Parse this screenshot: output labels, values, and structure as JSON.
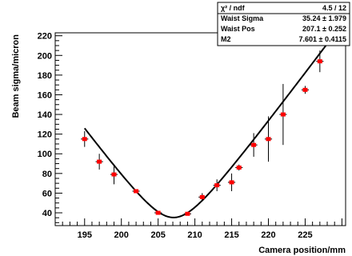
{
  "chart_data": {
    "type": "scatter",
    "title": "",
    "xlabel": "Camera position/mm",
    "ylabel": "Beam sigma/micron",
    "xlim": [
      191,
      230.5
    ],
    "ylim": [
      27,
      223
    ],
    "xticks": [
      195,
      200,
      205,
      210,
      215,
      220,
      225
    ],
    "xtick_labels": [
      "195",
      "200",
      "205",
      "210",
      "215",
      "220",
      "225"
    ],
    "yticks": [
      40,
      60,
      80,
      100,
      120,
      140,
      160,
      180,
      200,
      220
    ],
    "ytick_labels": [
      "40",
      "60",
      "80",
      "100",
      "120",
      "140",
      "160",
      "180",
      "200",
      "220"
    ],
    "grid": false,
    "marker_color": "#ff0000",
    "line_color": "#000000",
    "series": [
      {
        "x": [
          195,
          197,
          199,
          202,
          205,
          209,
          211,
          213,
          215,
          216,
          218,
          220,
          222,
          225,
          227
        ],
        "y": [
          115,
          92,
          79,
          62,
          40,
          39,
          56,
          68,
          71,
          86,
          109,
          115,
          140,
          165,
          194
        ],
        "xerr": [
          0.5,
          0.5,
          0.5,
          0.5,
          0.5,
          0.5,
          0.5,
          0.5,
          0.5,
          0.5,
          0.5,
          0.5,
          0.5,
          0.5,
          0.5
        ],
        "yerr": [
          8,
          8,
          10,
          2,
          1,
          1,
          4,
          6,
          9,
          3,
          12,
          23,
          31,
          4,
          11
        ]
      }
    ],
    "fit": {
      "waist_sigma": 35.24,
      "waist_pos": 207.1,
      "m2": 7.601,
      "x_from": 195,
      "x_to": 227.9,
      "a": 1.2716,
      "b": 78.6
    },
    "stats_box": {
      "rows": [
        {
          "label": "χ² / ndf",
          "value": "4.5 / 12"
        },
        {
          "label": "Waist Sigma",
          "value": "35.24 ± 1.979"
        },
        {
          "label": "Waist Pos",
          "value": "207.1 ± 0.252"
        },
        {
          "label": "M2",
          "value": "7.601 ± 0.4115"
        }
      ]
    }
  }
}
